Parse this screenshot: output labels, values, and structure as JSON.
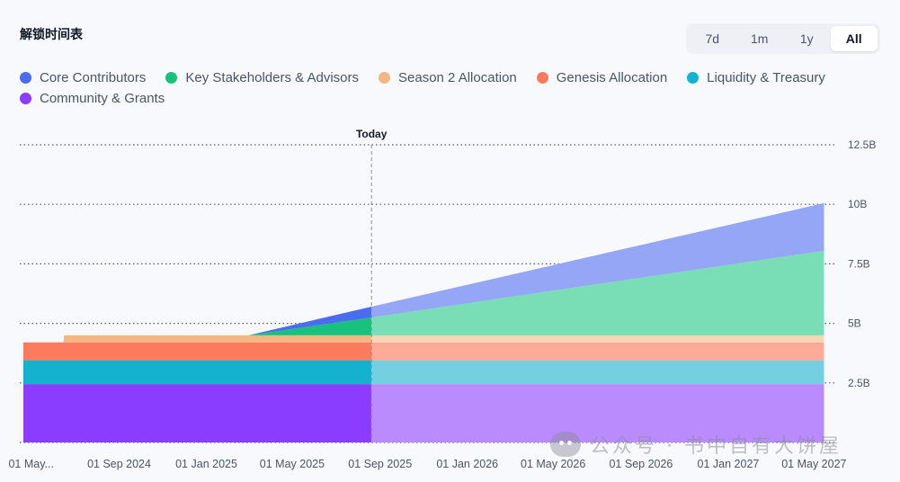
{
  "header": {
    "title": "解锁时间表"
  },
  "range_tabs": [
    {
      "label": "7d",
      "active": false
    },
    {
      "label": "1m",
      "active": false
    },
    {
      "label": "1y",
      "active": false
    },
    {
      "label": "All",
      "active": true
    }
  ],
  "watermark": {
    "text": "公众号 · 书中自有大饼屋"
  },
  "chart_data": {
    "type": "area",
    "stacked": true,
    "title": "",
    "today_label": "Today",
    "today_date": "2025-08-20",
    "x_range": [
      "2024-04-15",
      "2027-06-01"
    ],
    "ylim": [
      0,
      12500000000
    ],
    "y_ticks": [
      {
        "value": 0,
        "label": ""
      },
      {
        "value": 2500000000,
        "label": "2.5B"
      },
      {
        "value": 5000000000,
        "label": "5B"
      },
      {
        "value": 7500000000,
        "label": "7.5B"
      },
      {
        "value": 10000000000,
        "label": "10B"
      },
      {
        "value": 12500000000,
        "label": "12.5B"
      }
    ],
    "x_ticks": [
      {
        "date": "2024-05-01",
        "label": "01 May..."
      },
      {
        "date": "2024-09-01",
        "label": "01 Sep 2024"
      },
      {
        "date": "2025-01-01",
        "label": "01 Jan 2025"
      },
      {
        "date": "2025-05-01",
        "label": "01 May 2025"
      },
      {
        "date": "2025-09-01",
        "label": "01 Sep 2025"
      },
      {
        "date": "2026-01-01",
        "label": "01 Jan 2026"
      },
      {
        "date": "2026-05-01",
        "label": "01 May 2026"
      },
      {
        "date": "2026-09-01",
        "label": "01 Sep 2026"
      },
      {
        "date": "2027-01-01",
        "label": "01 Jan 2027"
      },
      {
        "date": "2027-05-01",
        "label": "01 May 2027"
      }
    ],
    "grid": "horizontal-dotted",
    "legend_position": "top-left",
    "series": [
      {
        "name": "Community & Grants",
        "color": "#8b3dff",
        "faded_color": "#b98bfc",
        "points": [
          [
            "2024-04-20",
            2450000000
          ],
          [
            "2027-05-15",
            2450000000
          ]
        ]
      },
      {
        "name": "Liquidity & Treasury",
        "color": "#14b2cf",
        "faded_color": "#74cfe0",
        "points": [
          [
            "2024-04-20",
            1000000000
          ],
          [
            "2027-05-15",
            1000000000
          ]
        ]
      },
      {
        "name": "Genesis Allocation",
        "color": "#fc7b5e",
        "faded_color": "#fdab98",
        "points": [
          [
            "2024-04-20",
            750000000
          ],
          [
            "2027-05-15",
            750000000
          ]
        ]
      },
      {
        "name": "Season 2 Allocation",
        "color": "#f6b67f",
        "faded_color": "#f8d6b3",
        "points": [
          [
            "2024-04-20",
            0
          ],
          [
            "2024-06-15",
            0
          ],
          [
            "2024-06-16",
            300000000
          ],
          [
            "2027-05-15",
            300000000
          ]
        ]
      },
      {
        "name": "Key Stakeholders & Advisors",
        "color": "#18c17e",
        "faded_color": "#79ddb6",
        "points": [
          [
            "2024-04-20",
            0
          ],
          [
            "2025-03-01",
            0
          ],
          [
            "2025-08-20",
            750000000
          ],
          [
            "2027-05-15",
            3550000000
          ]
        ]
      },
      {
        "name": "Core Contributors",
        "color": "#4a6cf0",
        "faded_color": "#94a6f5",
        "points": [
          [
            "2024-04-20",
            0
          ],
          [
            "2025-03-01",
            0
          ],
          [
            "2025-08-20",
            450000000
          ],
          [
            "2027-05-15",
            2000000000
          ]
        ]
      }
    ],
    "legend_order": [
      "Core Contributors",
      "Key Stakeholders & Advisors",
      "Season 2 Allocation",
      "Genesis Allocation",
      "Liquidity & Treasury",
      "Community & Grants"
    ]
  }
}
